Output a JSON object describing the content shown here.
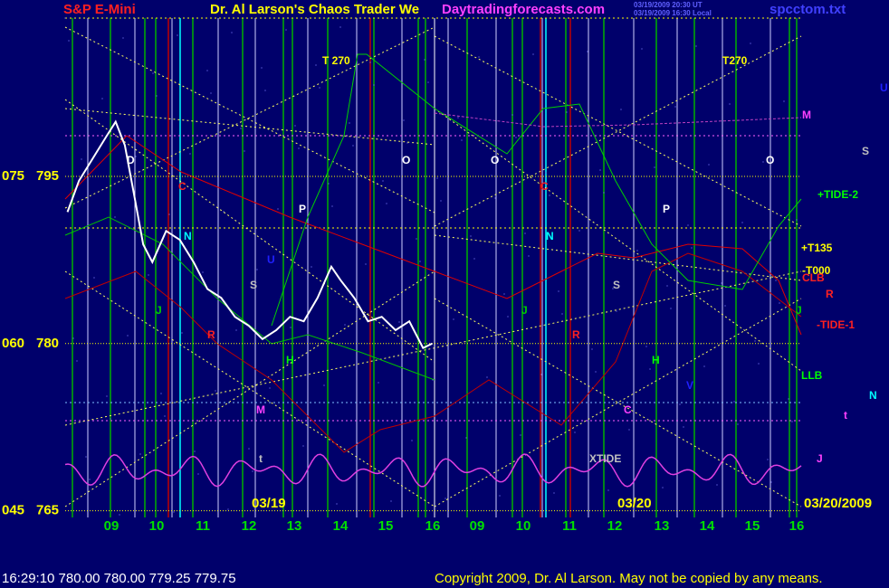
{
  "header": {
    "symbol": "S&P E-Mini",
    "title": "Dr. Al Larson's Chaos Trader We",
    "site": "Daytradingforecasts.com",
    "stamp_ut": "03/19/2009 20:30 UT",
    "stamp_local": "03/19/2009 16:30 Local",
    "file": "spcctom.txt"
  },
  "chart_data": {
    "type": "line",
    "categories": [
      "09",
      "10",
      "11",
      "12",
      "13",
      "14",
      "15",
      "16",
      "09",
      "10",
      "11",
      "12",
      "13",
      "14",
      "15",
      "16"
    ],
    "ylim": [
      764.4,
      809.2
    ],
    "yticks": [
      765,
      780,
      795
    ],
    "left_labels": [
      "045",
      "060",
      "075"
    ],
    "xlim": [
      8,
      16.05
    ],
    "series": [
      {
        "name": "price",
        "color": "#ffffff",
        "x": [
          8.05,
          8.3,
          8.6,
          8.9,
          9.1,
          9.3,
          9.5,
          9.7,
          9.9,
          10.2,
          10.5,
          10.8,
          11.1,
          11.4,
          11.7,
          12.0,
          12.3,
          12.6,
          12.9,
          13.2,
          13.5,
          13.8,
          14.0,
          14.3,
          14.6,
          14.9,
          15.2,
          15.5,
          15.8,
          16.0
        ],
        "values": [
          791.8,
          794.6,
          796.6,
          798.6,
          799.9,
          797.8,
          793.4,
          788.9,
          787.3,
          790.1,
          789.3,
          787.3,
          784.9,
          784.1,
          782.4,
          781.6,
          780.4,
          781.2,
          782.4,
          782.0,
          784.1,
          786.9,
          785.7,
          784.1,
          782.0,
          782.4,
          781.2,
          782.0,
          779.6,
          780.0
        ]
      }
    ],
    "dates": [
      "03/19",
      "03/20",
      "03/20/2009"
    ],
    "annotations": [
      "T 270",
      "T270",
      "M",
      "U",
      "S",
      "O",
      "O",
      "O",
      "D",
      "C",
      "C",
      "+TIDE-2",
      "P",
      "P",
      "N",
      "N",
      "+T135",
      "U",
      "-T000",
      "CLB",
      "S",
      "S",
      "R",
      "J",
      "J",
      "J",
      "-TIDE-1",
      "R",
      "R",
      "H",
      "H",
      "LLB",
      "V",
      "N",
      "M",
      "C",
      "t",
      "t",
      "XTIDE",
      "J"
    ]
  },
  "footer": {
    "quote": "16:29:10  780.00 780.00 779.25 779.75",
    "copyright": "Copyright 2009, Dr. Al Larson. May not be copied by any means."
  }
}
